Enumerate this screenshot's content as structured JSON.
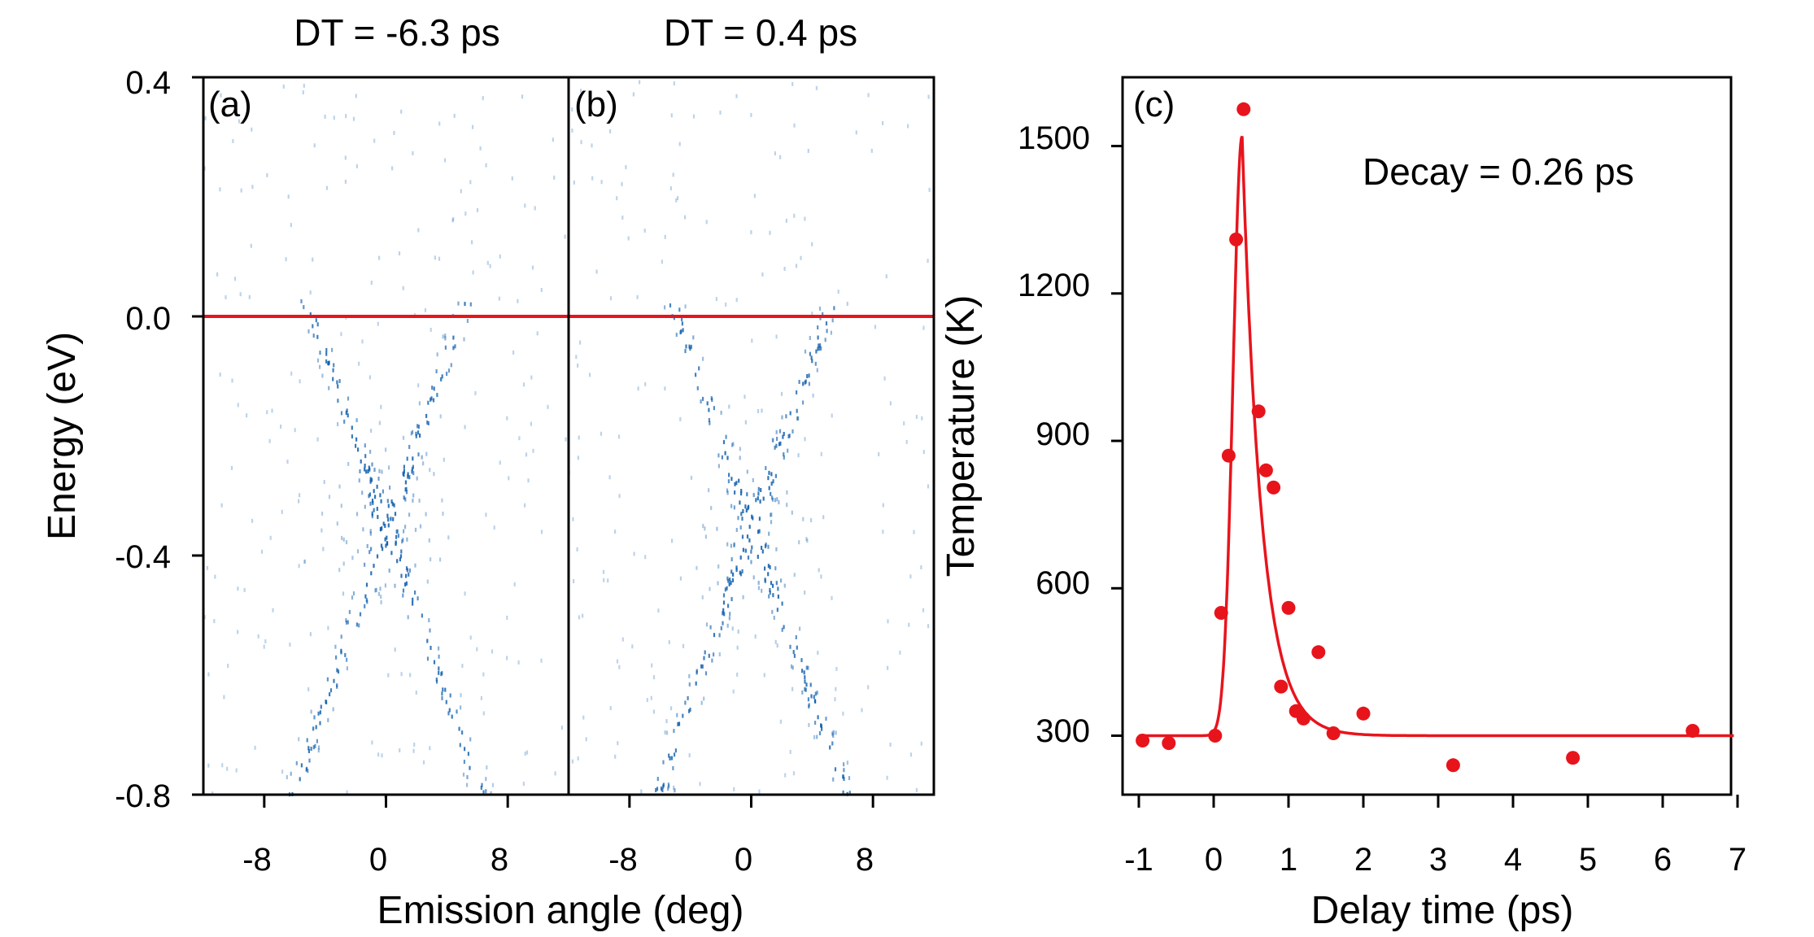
{
  "chart_data": [
    {
      "type": "heatmap",
      "panel_label": "(a)",
      "title": "DT = -6.3 ps",
      "xlabel": "Emission angle (deg)",
      "ylabel": "Energy (eV)",
      "xlim": [
        -12,
        12
      ],
      "ylim": [
        -0.8,
        0.4
      ],
      "xticks": [
        "-8",
        "0",
        "8"
      ],
      "xtick_values": [
        -8,
        0,
        8
      ],
      "yticks": [
        "0.4",
        "0.0",
        "-0.4",
        "-0.8"
      ],
      "ytick_values": [
        0.4,
        0.0,
        -0.4,
        -0.8
      ],
      "reference_line_energy": 0.0,
      "features": {
        "band_vertex_angle_deg": 0,
        "band_vertex_energy_eV": -0.35,
        "band_top_energy_eV": 0.0,
        "dispersion_slope_eV_per_deg": 0.072
      }
    },
    {
      "type": "heatmap",
      "panel_label": "(b)",
      "title": "DT = 0.4 ps",
      "xlabel": "Emission angle (deg)",
      "xlim": [
        -12,
        12
      ],
      "ylim": [
        -0.8,
        0.4
      ],
      "xticks": [
        "-8",
        "0",
        "8"
      ],
      "xtick_values": [
        -8,
        0,
        8
      ],
      "reference_line_energy": 0.0,
      "features": {
        "band_vertex_angle_deg": 0,
        "band_vertex_energy_eV": -0.35,
        "band_top_energy_eV": 0.0,
        "dispersion_slope_eV_per_deg": 0.072
      }
    },
    {
      "type": "scatter",
      "panel_label": "(c)",
      "annotation": "Decay = 0.26 ps",
      "xlabel": "Delay time (ps)",
      "ylabel": "Temperature (K)",
      "xlim": [
        -1,
        7
      ],
      "ylim": [
        180,
        1640
      ],
      "xticks": [
        "-1",
        "0",
        "1",
        "2",
        "3",
        "4",
        "5",
        "6",
        "7"
      ],
      "xtick_values": [
        -1,
        0,
        1,
        2,
        3,
        4,
        5,
        6,
        7
      ],
      "yticks": [
        "300",
        "600",
        "900",
        "1200",
        "1500"
      ],
      "ytick_values": [
        300,
        600,
        900,
        1200,
        1500
      ],
      "series": [
        {
          "name": "measured",
          "color": "#e8141c",
          "x": [
            -0.95,
            -0.6,
            0.02,
            0.1,
            0.2,
            0.3,
            0.4,
            0.6,
            0.7,
            0.8,
            0.9,
            1.0,
            1.1,
            1.2,
            1.4,
            1.6,
            2.0,
            3.2,
            4.8,
            6.4
          ],
          "y": [
            290,
            285,
            300,
            550,
            870,
            1310,
            1575,
            960,
            840,
            805,
            400,
            560,
            350,
            335,
            470,
            305,
            345,
            240,
            255,
            310
          ]
        },
        {
          "name": "fit",
          "color": "#e8141c",
          "model": "baseline + gaussian rise + exponential decay",
          "baseline_K": 300,
          "peak_K": 1520,
          "peak_time_ps": 0.38,
          "rise_width_ps": 0.12,
          "decay_ps": 0.26,
          "x_range": [
            -1,
            6.95
          ]
        }
      ]
    }
  ],
  "colors": {
    "intensity": "#0b5cad",
    "reference_line": "#e8141c",
    "data": "#e8141c"
  }
}
